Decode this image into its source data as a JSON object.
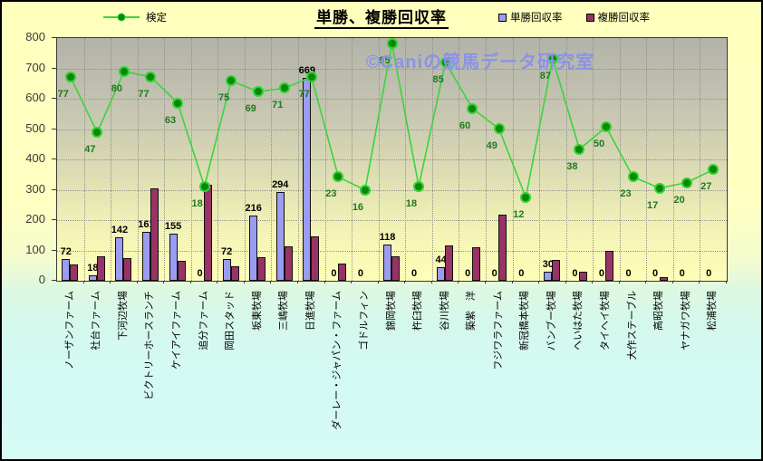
{
  "title": "単勝、複勝回収率",
  "watermark": "©Caniの競馬データ研究室",
  "legend": {
    "kentei_label": "検定",
    "tansho_label": "単勝回収率",
    "fukusho_label": "複勝回収率"
  },
  "y_axis": {
    "min": 0,
    "max": 800,
    "step": 100,
    "tick_labels": [
      "800",
      "700",
      "600",
      "500",
      "400",
      "300",
      "200",
      "100",
      "0"
    ]
  },
  "colors": {
    "bar_tansho": "#9c9cf3",
    "bar_fukusho": "#993366",
    "line": "#3cd43c",
    "marker_fill": "#0a870a",
    "marker_ring": "#2fd32f",
    "kentei_label_text": "#1e7a1e",
    "bar_label_text": "#000000",
    "watermark_text": "#8a93e6",
    "background_top": "#ffffc0",
    "background_bottom": "#d4faf4"
  },
  "chart_data": {
    "type": "bar",
    "note": "grouped bars on primary axis 0-800 with overlaid line series on hidden secondary axis",
    "categories": [
      "ノーザンファーム",
      "社台ファーム",
      "下河辺牧場",
      "ビクトリーホースランチ",
      "ケイアイファーム",
      "追分ファーム",
      "岡田スタッド",
      "坂東牧場",
      "三嶋牧場",
      "日進牧場",
      "ダーレー・ジャパン・ファーム",
      "ゴドルフィン",
      "錦岡牧場",
      "杵臼牧場",
      "谷川牧場",
      "築紫　洋",
      "フジワラファーム",
      "新冠橋本牧場",
      "バンブー牧場",
      "へいはた牧場",
      "タイヘイ牧場",
      "大作ステーブル",
      "高昭牧場",
      "ヤナガワ牧場",
      "松浦牧場"
    ],
    "series": [
      {
        "name": "単勝回収率",
        "type": "bar",
        "axis": "primary",
        "data_labels_shown": true,
        "values": [
          72,
          18,
          142,
          161,
          155,
          0,
          72,
          216,
          294,
          669,
          0,
          0,
          118,
          0,
          44,
          0,
          0,
          0,
          30,
          0,
          0,
          0,
          0,
          0,
          0
        ]
      },
      {
        "name": "複勝回収率",
        "type": "bar",
        "axis": "primary",
        "data_labels_shown": false,
        "values": [
          55,
          80,
          75,
          305,
          65,
          315,
          48,
          78,
          113,
          147,
          56,
          0,
          82,
          0,
          115,
          110,
          218,
          0,
          70,
          30,
          98,
          0,
          13,
          0,
          0
        ]
      },
      {
        "name": "検定",
        "type": "line",
        "axis": "secondary",
        "data_labels_shown": true,
        "secondary_axis": {
          "min": -33,
          "max": 98
        },
        "values": [
          77,
          47,
          80,
          77,
          63,
          18,
          75,
          69,
          71,
          77,
          23,
          16,
          95,
          18,
          85,
          60,
          49,
          12,
          87,
          38,
          50,
          23,
          17,
          20,
          27
        ]
      }
    ],
    "ylim": [
      0,
      800
    ],
    "grid": true,
    "legend_position": "top"
  }
}
